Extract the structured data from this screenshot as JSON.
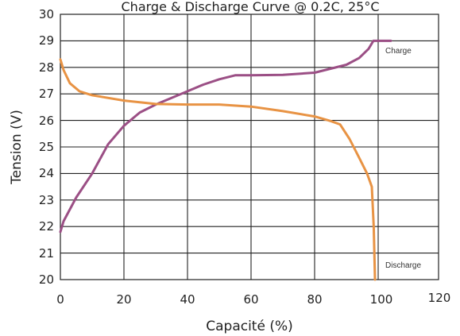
{
  "chart_data": {
    "type": "line",
    "title": "Charge & Discharge Curve @ 0.2C, 25°C",
    "xlabel": "Capacité (%)",
    "ylabel": "Tension (V)",
    "xlim": [
      0,
      100
    ],
    "ylim": [
      20,
      30
    ],
    "x_ticks": [
      "0",
      "20",
      "40",
      "60",
      "80",
      "100",
      "120"
    ],
    "y_ticks": [
      "20",
      "21",
      "22",
      "23",
      "24",
      "25",
      "26",
      "27",
      "28",
      "29",
      "30"
    ],
    "grid": true,
    "series": [
      {
        "name": "Charge",
        "color": "#9b4f85",
        "points": [
          [
            0,
            21.8
          ],
          [
            1,
            22.2
          ],
          [
            5,
            23.1
          ],
          [
            10,
            24
          ],
          [
            15,
            25.1
          ],
          [
            20,
            25.8
          ],
          [
            25,
            26.3
          ],
          [
            30,
            26.6
          ],
          [
            35,
            26.85
          ],
          [
            40,
            27.1
          ],
          [
            45,
            27.35
          ],
          [
            50,
            27.55
          ],
          [
            55,
            27.7
          ],
          [
            60,
            27.7
          ],
          [
            70,
            27.72
          ],
          [
            80,
            27.8
          ],
          [
            85,
            27.95
          ],
          [
            90,
            28.1
          ],
          [
            94,
            28.35
          ],
          [
            97,
            28.7
          ],
          [
            98.5,
            29
          ],
          [
            104,
            29
          ]
        ]
      },
      {
        "name": "Discharge",
        "color": "#e89344",
        "points": [
          [
            0,
            28.3
          ],
          [
            1,
            27.9
          ],
          [
            3,
            27.4
          ],
          [
            6,
            27.1
          ],
          [
            10,
            26.95
          ],
          [
            20,
            26.75
          ],
          [
            30,
            26.62
          ],
          [
            40,
            26.6
          ],
          [
            50,
            26.6
          ],
          [
            60,
            26.52
          ],
          [
            70,
            26.35
          ],
          [
            80,
            26.15
          ],
          [
            85,
            25.98
          ],
          [
            88,
            25.85
          ],
          [
            91,
            25.3
          ],
          [
            94,
            24.6
          ],
          [
            96.5,
            24
          ],
          [
            98,
            23.5
          ],
          [
            98.6,
            22
          ],
          [
            99,
            20
          ]
        ]
      }
    ]
  }
}
